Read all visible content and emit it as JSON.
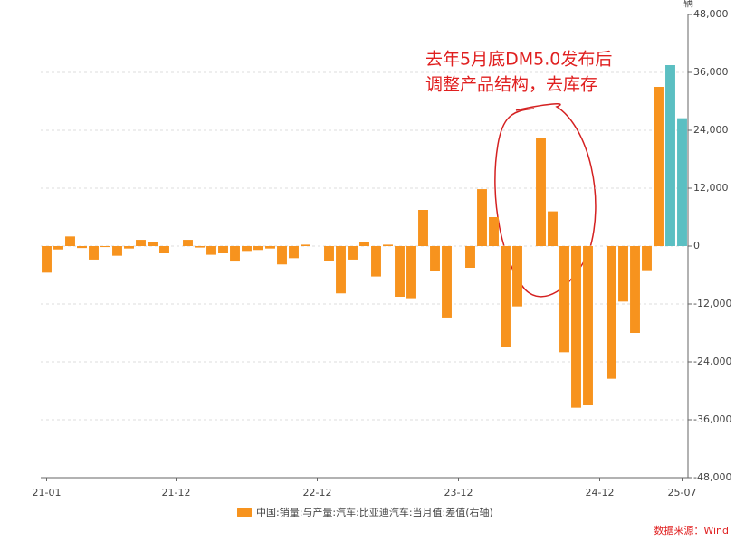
{
  "chart_data": {
    "type": "bar",
    "y_unit": "辆",
    "annotation": [
      "去年5月底DM5.0发布后",
      "调整产品结构，去库存"
    ],
    "source": "数据来源：Wind",
    "categories": [
      "21-01",
      null,
      null,
      null,
      null,
      null,
      null,
      null,
      null,
      null,
      null,
      "21-12",
      null,
      null,
      null,
      null,
      null,
      null,
      null,
      null,
      null,
      null,
      null,
      "22-12",
      null,
      null,
      null,
      null,
      null,
      null,
      null,
      null,
      null,
      null,
      null,
      "23-12",
      null,
      null,
      null,
      null,
      null,
      null,
      null,
      null,
      null,
      null,
      null,
      "24-12",
      null,
      null,
      null,
      null,
      null,
      null,
      "25-07"
    ],
    "series": [
      {
        "name": "中国:销量:与产量:汽车:比亚迪汽车:当月值:差值(右轴)",
        "color": "#f7931e",
        "values": [
          -5500,
          -700,
          2000,
          -400,
          -2800,
          -200,
          -2000,
          -500,
          1300,
          800,
          -1500,
          0,
          1300,
          -300,
          -1800,
          -1500,
          -3200,
          -1000,
          -800,
          -500,
          -3800,
          -2500,
          300,
          0,
          -3000,
          -9800,
          -2800,
          800,
          -6300,
          300,
          -10500,
          -10800,
          7500,
          -5200,
          -14800,
          0,
          -4500,
          11800,
          6000,
          -21000,
          -12500,
          0,
          22500,
          7200,
          -22000,
          -33500,
          -33000,
          0,
          -27500,
          -11500,
          -18000,
          -5000,
          33000,
          null,
          null
        ]
      },
      {
        "color": "#5bbfc2",
        "values": [
          null,
          null,
          null,
          null,
          null,
          null,
          null,
          null,
          null,
          null,
          null,
          null,
          null,
          null,
          null,
          null,
          null,
          null,
          null,
          null,
          null,
          null,
          null,
          null,
          null,
          null,
          null,
          null,
          null,
          null,
          null,
          null,
          null,
          null,
          null,
          null,
          null,
          null,
          null,
          null,
          null,
          null,
          null,
          null,
          null,
          null,
          null,
          null,
          null,
          null,
          null,
          null,
          null,
          37500,
          26500
        ]
      }
    ],
    "ylim": [
      -48000,
      48000
    ],
    "yticks": [
      {
        "value": -48000,
        "label": "-48,000"
      },
      {
        "value": -36000,
        "label": "-36,000"
      },
      {
        "value": -24000,
        "label": "-24,000"
      },
      {
        "value": -12000,
        "label": "-12,000"
      },
      0,
      {
        "value": 12000,
        "label": "12,000"
      },
      {
        "value": 24000,
        "label": "24,000"
      },
      {
        "value": 36000,
        "label": "36,000"
      },
      {
        "value": 48000,
        "label": "48,000"
      }
    ],
    "grid": true
  }
}
